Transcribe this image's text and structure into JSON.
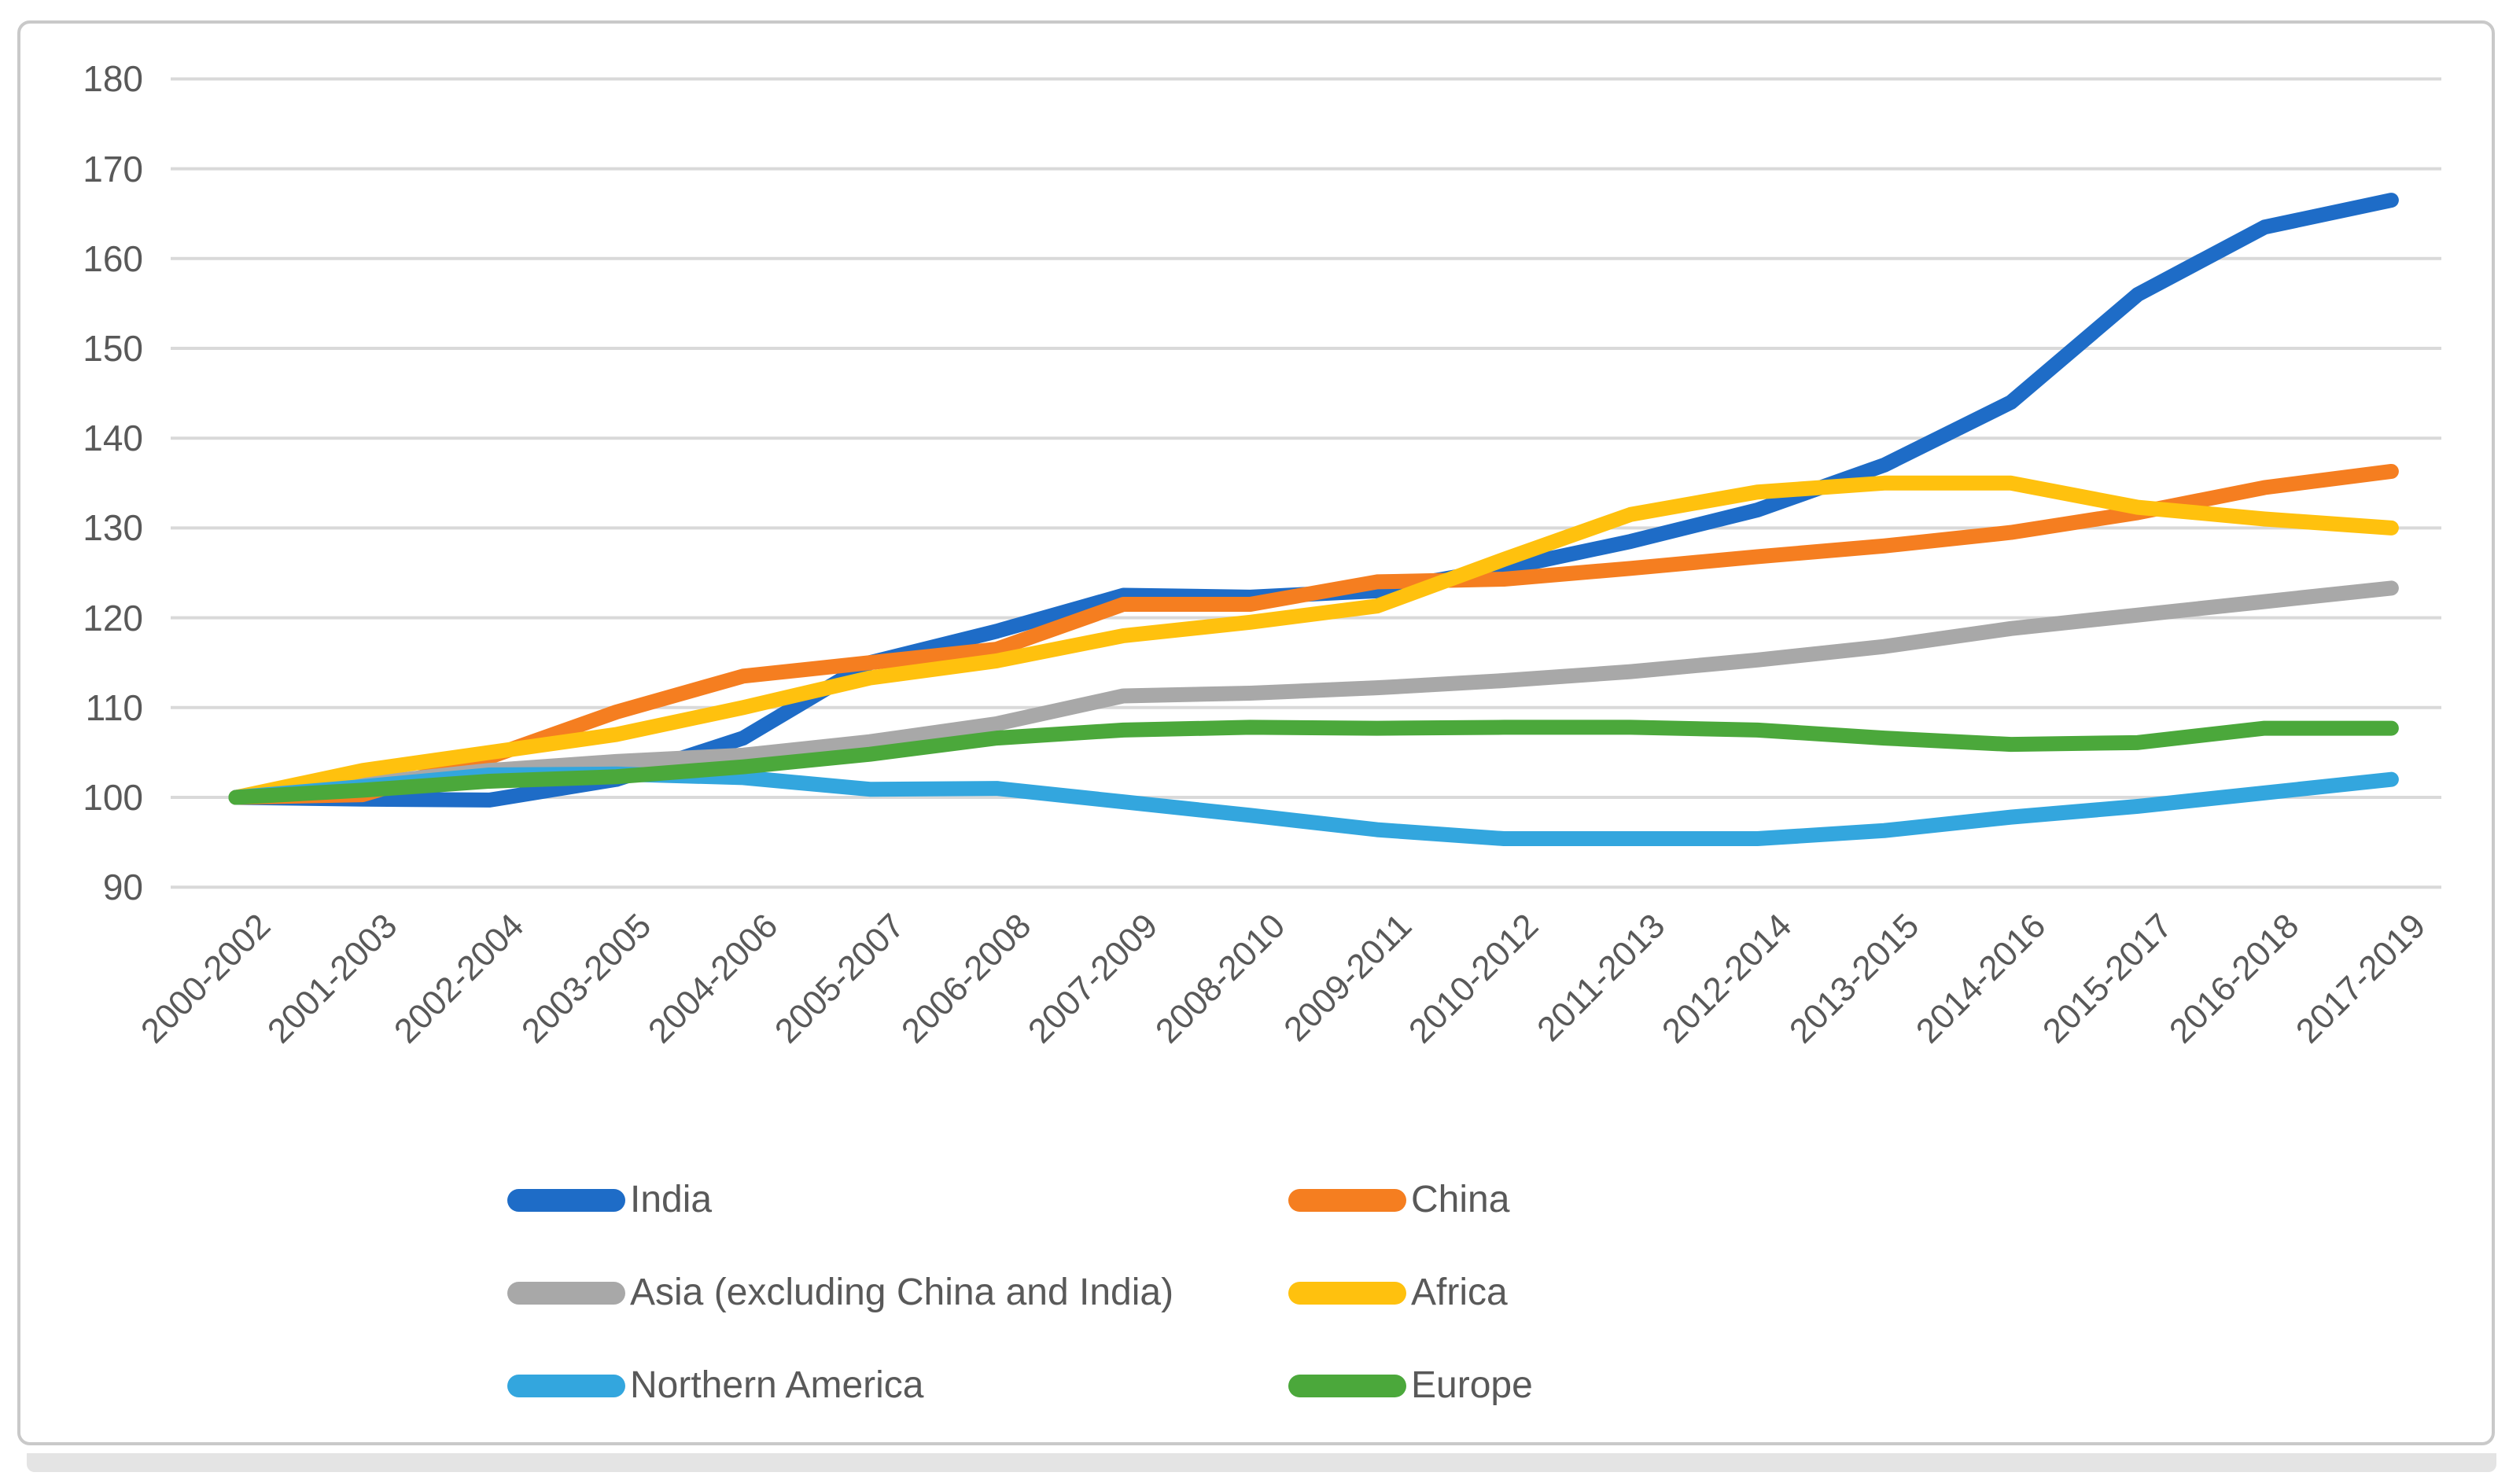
{
  "chart_data": {
    "type": "line",
    "title": "",
    "xlabel": "",
    "ylabel": "",
    "grid": true,
    "legend_position": "bottom",
    "legend_columns": 2,
    "x_categories": [
      "2000-2002",
      "2001-2003",
      "2002-2004",
      "2003-2005",
      "2004-2006",
      "2005-2007",
      "2006-2008",
      "2007-2009",
      "2008-2010",
      "2009-2011",
      "2010-2012",
      "2011-2013",
      "2012-2014",
      "2013-2015",
      "2014-2016",
      "2015-2017",
      "2016-2018",
      "2017-2019"
    ],
    "y_axis": {
      "min": 90,
      "max": 180,
      "step": 10,
      "ticks": [
        "180",
        "170",
        "160",
        "150",
        "140",
        "130",
        "120",
        "110",
        "100",
        "90"
      ],
      "tick_values": [
        180,
        170,
        160,
        150,
        140,
        130,
        120,
        110,
        100,
        90
      ]
    },
    "series": [
      {
        "name": "India",
        "color": "#1E6CC7",
        "values": [
          100,
          99.8,
          99.7,
          102,
          106.6,
          115,
          118.5,
          122.5,
          122.3,
          123,
          125.5,
          128.5,
          132,
          137,
          144,
          156,
          163.5,
          166.5
        ]
      },
      {
        "name": "China",
        "color": "#F57E20",
        "values": [
          100,
          100.3,
          104.5,
          109.5,
          113.5,
          115,
          116.5,
          121.5,
          121.5,
          124,
          124.3,
          125.5,
          126.8,
          128,
          129.5,
          131.7,
          134.5,
          136.3
        ]
      },
      {
        "name": "Asia (excluding China and India)",
        "color": "#A8A8A8",
        "values": [
          100,
          101.5,
          103,
          104,
          104.7,
          106.2,
          108.2,
          111.3,
          111.6,
          112.2,
          113,
          114,
          115.3,
          116.8,
          118.8,
          120.3,
          121.8,
          123.3
        ]
      },
      {
        "name": "Africa",
        "color": "#FFC10E",
        "values": [
          100,
          103,
          105,
          107,
          110,
          113.3,
          115.2,
          118,
          119.5,
          121.3,
          126.5,
          131.5,
          134,
          135,
          135,
          132.3,
          131,
          130
        ]
      },
      {
        "name": "Northern America",
        "color": "#33A6DE",
        "values": [
          100,
          101.2,
          102.5,
          102.6,
          102.2,
          100.9,
          101,
          99.5,
          98,
          96.4,
          95.4,
          95.4,
          95.4,
          96.3,
          97.8,
          99,
          100.5,
          102
        ]
      },
      {
        "name": "Europe",
        "color": "#4BA83B",
        "values": [
          100,
          100.8,
          101.8,
          102.3,
          103.4,
          104.8,
          106.6,
          107.5,
          107.8,
          107.7,
          107.8,
          107.8,
          107.5,
          106.6,
          105.9,
          106.1,
          107.7,
          107.7
        ]
      }
    ],
    "style_colors": {
      "gridline": "#D9D9D9",
      "axis_text": "#595959",
      "frame_border": "#C9C9C9",
      "background": "#FFFFFF"
    }
  }
}
